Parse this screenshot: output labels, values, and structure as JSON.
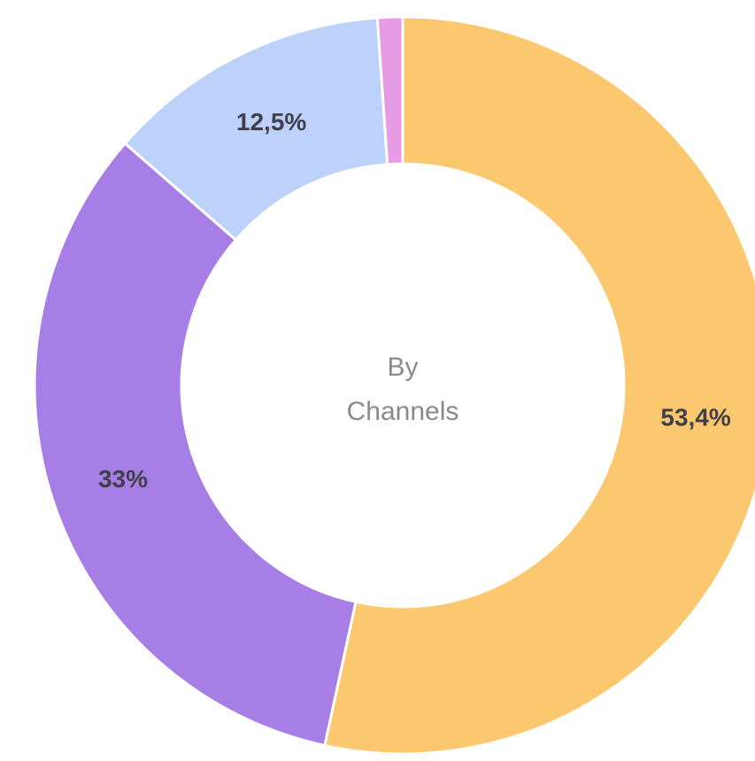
{
  "chart_data": {
    "type": "pie",
    "donut": true,
    "center_label": [
      "By",
      "Channels"
    ],
    "slices": [
      {
        "label": "53,4%",
        "value": 53.4,
        "color": "#fcc86f"
      },
      {
        "label": "33%",
        "value": 33.0,
        "color": "#a77ee6"
      },
      {
        "label": "12,5%",
        "value": 12.5,
        "color": "#bcd2fb"
      },
      {
        "label": "",
        "value": 1.1,
        "color": "#e79be4"
      }
    ]
  }
}
